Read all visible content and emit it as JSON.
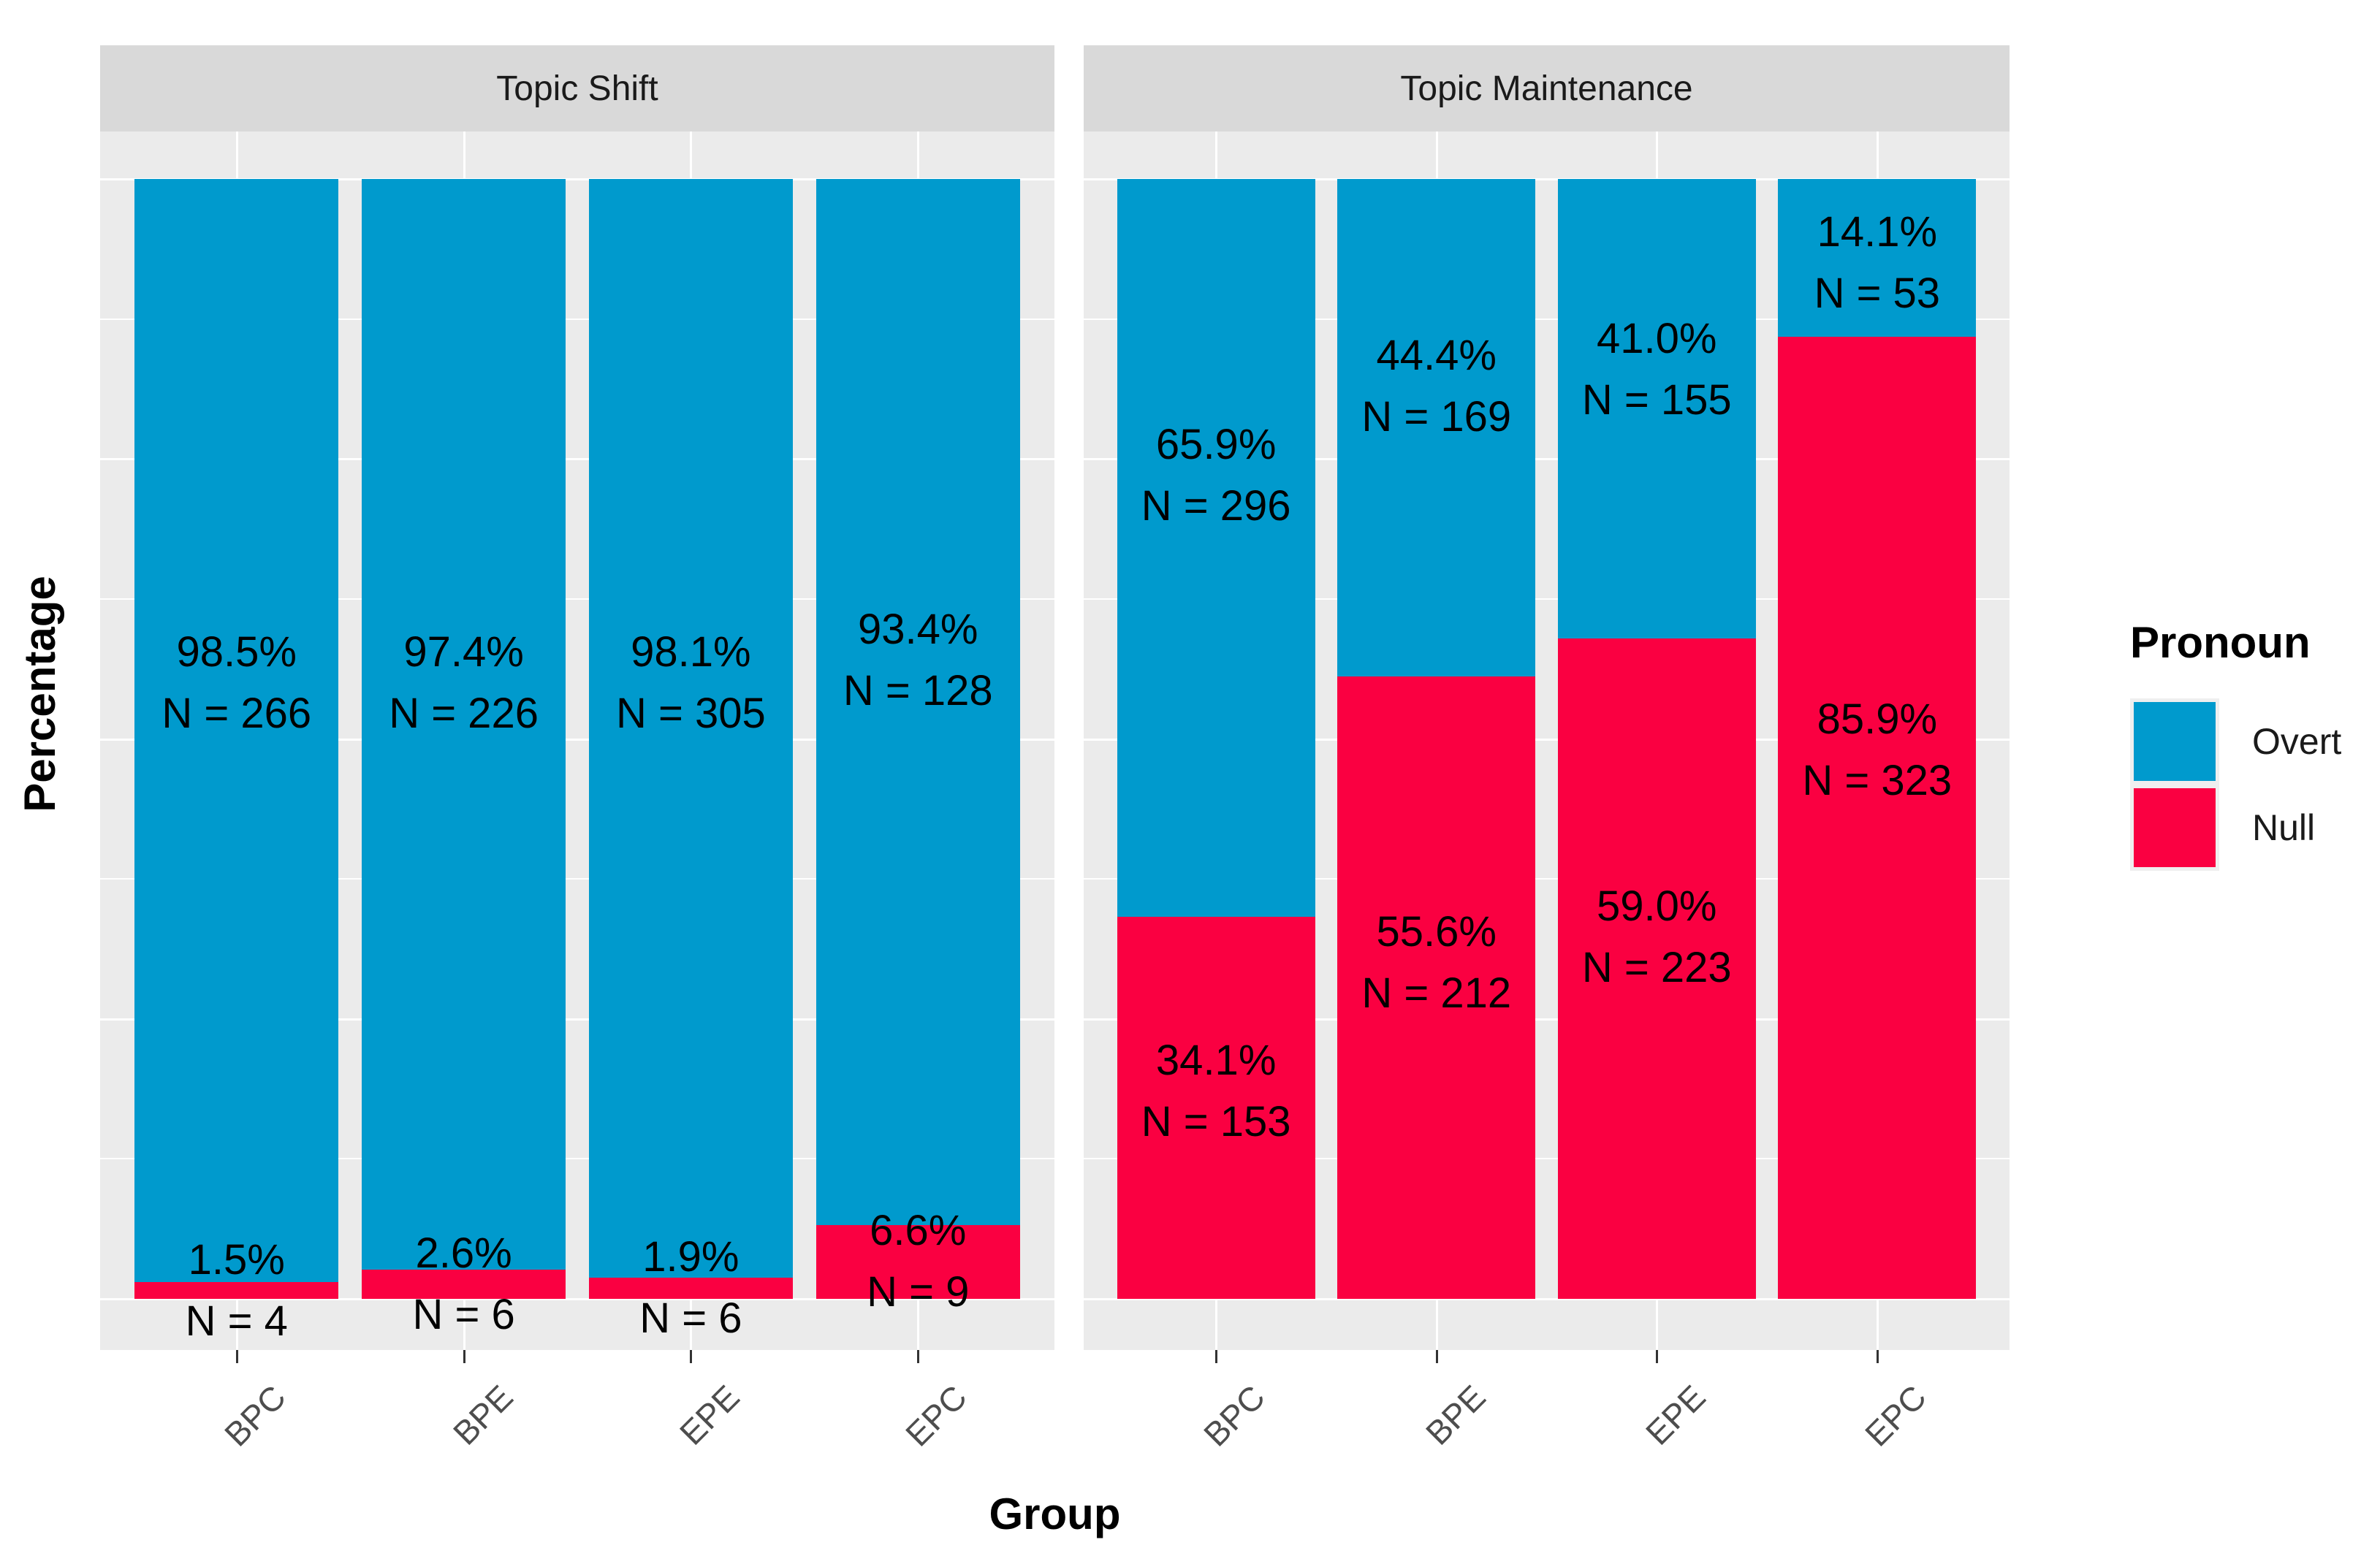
{
  "chart_data": {
    "type": "bar",
    "stacked": "percent",
    "xlabel": "Group",
    "ylabel": "Percentage",
    "legend_title": "Pronoun",
    "legend_position": "right",
    "ylim": [
      0,
      100
    ],
    "y_gridline_step_pct": 12.5,
    "grid": "white gridlines on gray panel",
    "colors": {
      "panel_bg": "#ebebeb",
      "strip_bg": "#d9d9d9",
      "gridline": "#ffffff",
      "legend_key_bg": "#efefef",
      "axis_text": "#4d4d4d",
      "label_text": "#000000"
    },
    "series": [
      {
        "name": "Overt",
        "color": "#009ACD"
      },
      {
        "name": "Null",
        "color": "#FA0041"
      }
    ],
    "categories": [
      "BPC",
      "BPE",
      "EPE",
      "EPC"
    ],
    "facets": [
      {
        "title": "Topic Shift",
        "bars": [
          {
            "category": "BPC",
            "segments": [
              {
                "series": "Overt",
                "value": 98.5,
                "n": 266,
                "pct_label": "98.5%",
                "n_label": "N = 266",
                "label_center": 55
              },
              {
                "series": "Null",
                "value": 1.5,
                "n": 4,
                "pct_label": "1.5%",
                "n_label": "N = 4",
                "label_center": 0.75
              }
            ]
          },
          {
            "category": "BPE",
            "segments": [
              {
                "series": "Overt",
                "value": 97.4,
                "n": 226,
                "pct_label": "97.4%",
                "n_label": "N = 226",
                "label_center": 55
              },
              {
                "series": "Null",
                "value": 2.6,
                "n": 6,
                "pct_label": "2.6%",
                "n_label": "N = 6",
                "label_center": 1.3
              }
            ]
          },
          {
            "category": "EPE",
            "segments": [
              {
                "series": "Overt",
                "value": 98.1,
                "n": 305,
                "pct_label": "98.1%",
                "n_label": "N = 305",
                "label_center": 55
              },
              {
                "series": "Null",
                "value": 1.9,
                "n": 6,
                "pct_label": "1.9%",
                "n_label": "N = 6",
                "label_center": 1.0
              }
            ]
          },
          {
            "category": "EPC",
            "segments": [
              {
                "series": "Overt",
                "value": 93.4,
                "n": 128,
                "pct_label": "93.4%",
                "n_label": "N = 128",
                "label_center": 57
              },
              {
                "series": "Null",
                "value": 6.6,
                "n": 9,
                "pct_label": "6.6%",
                "n_label": "N = 9",
                "label_center": 3.3
              }
            ]
          }
        ]
      },
      {
        "title": "Topic Maintenance",
        "bars": [
          {
            "category": "BPC",
            "segments": [
              {
                "series": "Overt",
                "value": 65.9,
                "n": 296,
                "pct_label": "65.9%",
                "n_label": "N = 296",
                "label_center": 73.5
              },
              {
                "series": "Null",
                "value": 34.1,
                "n": 153,
                "pct_label": "34.1%",
                "n_label": "N = 153",
                "label_center": 18.5
              }
            ]
          },
          {
            "category": "BPE",
            "segments": [
              {
                "series": "Overt",
                "value": 44.4,
                "n": 169,
                "pct_label": "44.4%",
                "n_label": "N = 169",
                "label_center": 81.5
              },
              {
                "series": "Null",
                "value": 55.6,
                "n": 212,
                "pct_label": "55.6%",
                "n_label": "N = 212",
                "label_center": 30
              }
            ]
          },
          {
            "category": "EPE",
            "segments": [
              {
                "series": "Overt",
                "value": 41.0,
                "n": 155,
                "pct_label": "41.0%",
                "n_label": "N = 155",
                "label_center": 83
              },
              {
                "series": "Null",
                "value": 59.0,
                "n": 223,
                "pct_label": "59.0%",
                "n_label": "N = 223",
                "label_center": 32.3
              }
            ]
          },
          {
            "category": "EPC",
            "segments": [
              {
                "series": "Overt",
                "value": 14.1,
                "n": 53,
                "pct_label": "14.1%",
                "n_label": "N = 53",
                "label_center": 92.5
              },
              {
                "series": "Null",
                "value": 85.9,
                "n": 323,
                "pct_label": "85.9%",
                "n_label": "N = 323",
                "label_center": 49
              }
            ]
          }
        ]
      }
    ]
  }
}
